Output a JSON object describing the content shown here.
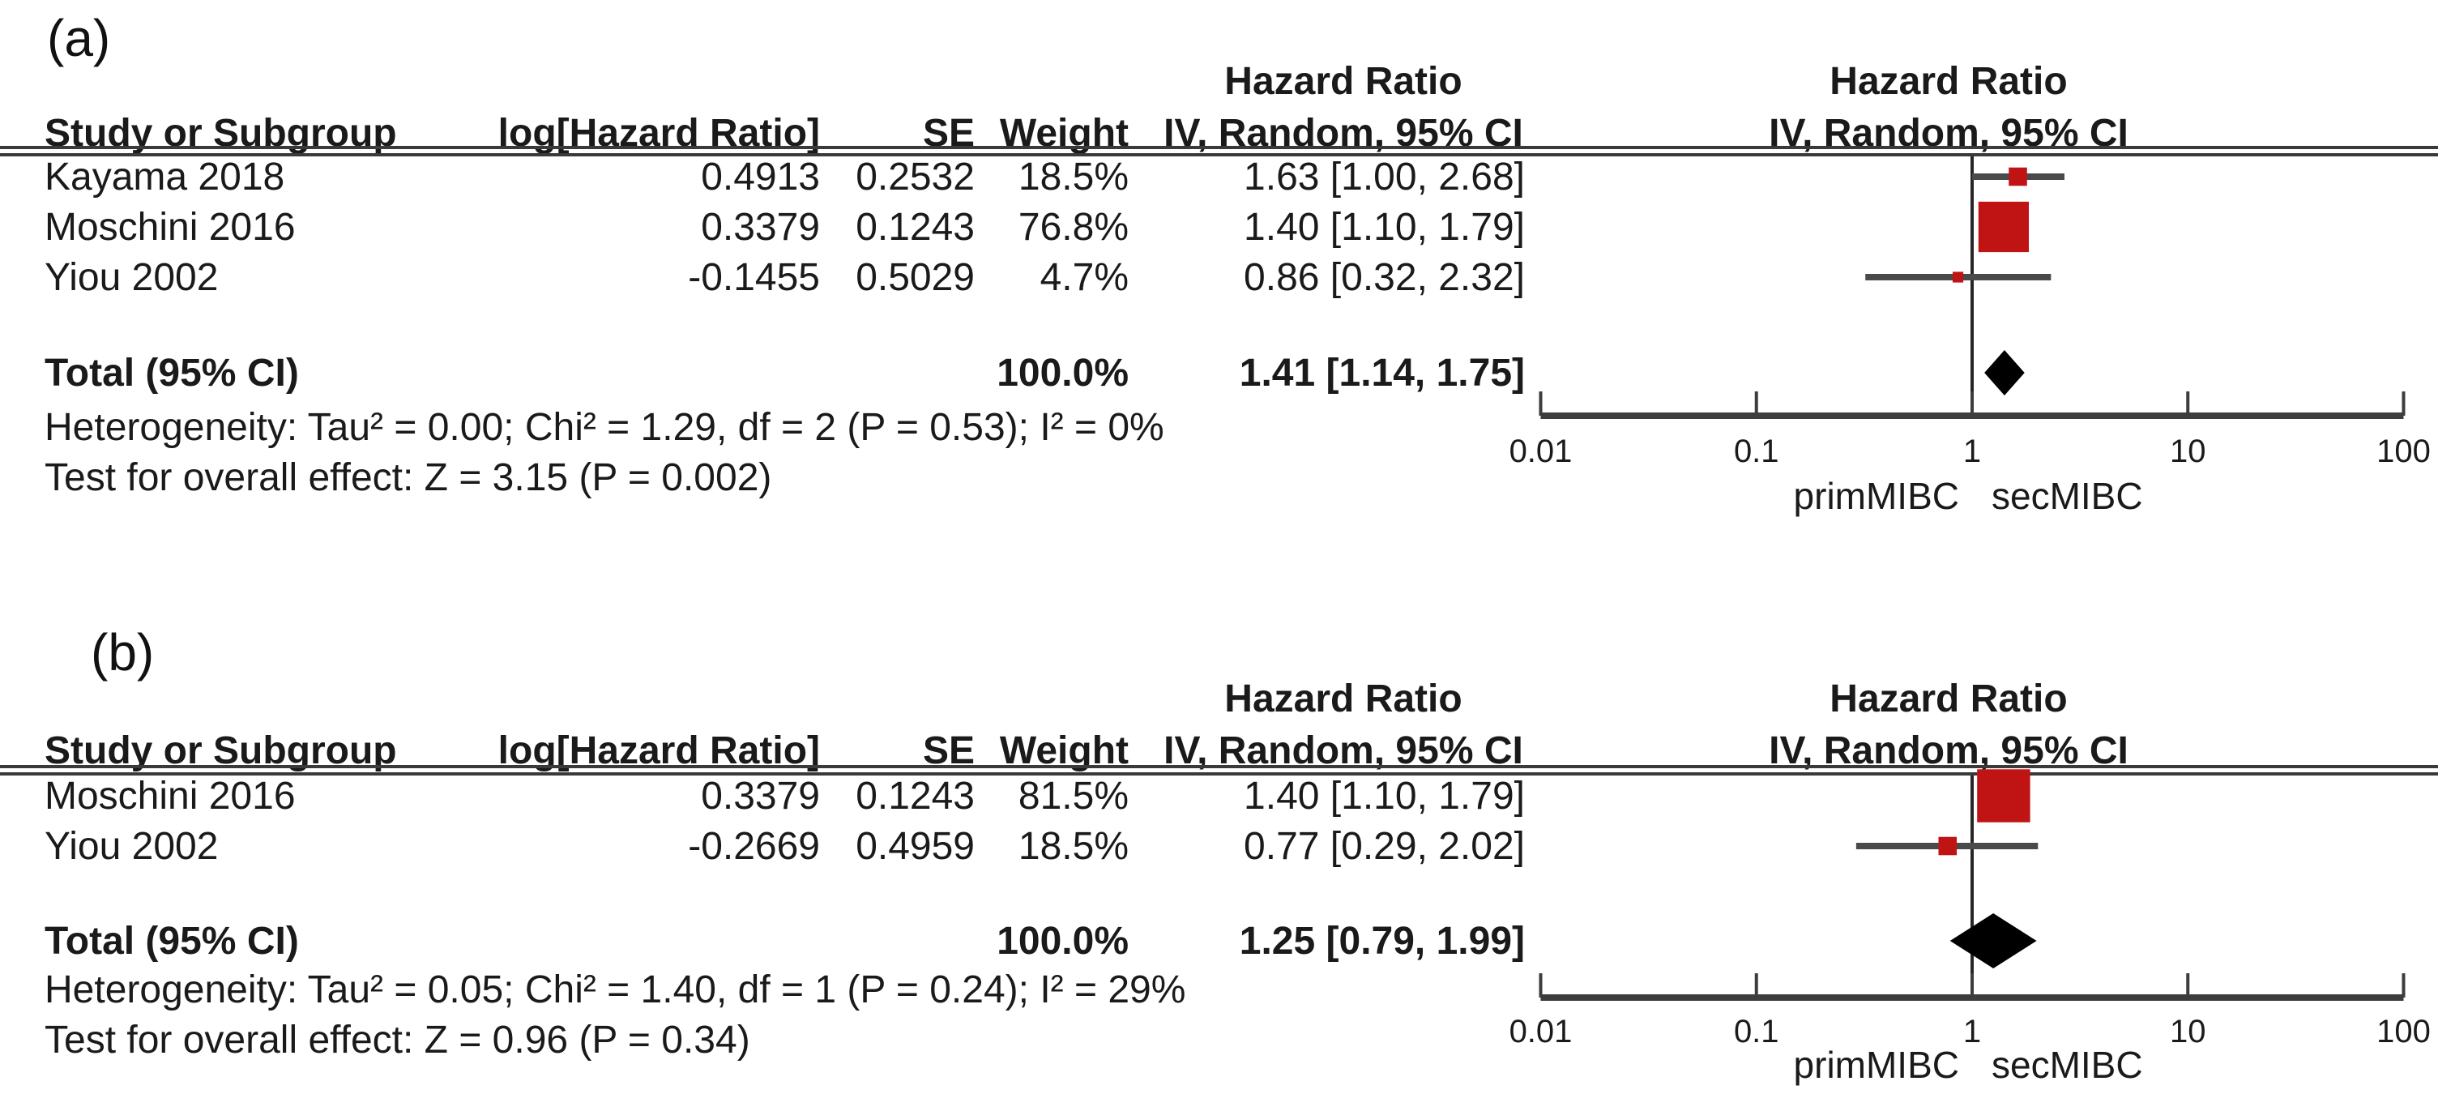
{
  "panels": [
    {
      "label": "(a)",
      "headers": {
        "study": "Study or Subgroup",
        "loghr": "log[Hazard Ratio]",
        "se": "SE",
        "weight": "Weight",
        "ci": "IV, Random, 95% CI",
        "effect_col_title": "Hazard Ratio",
        "plot_title": "Hazard Ratio",
        "plot_subtitle": "IV, Random, 95% CI"
      },
      "rows": [
        {
          "study": "Kayama 2018",
          "loghr": "0.4913",
          "se": "0.2532",
          "weight": "18.5%",
          "ci": "1.63 [1.00, 2.68]"
        },
        {
          "study": "Moschini 2016",
          "loghr": "0.3379",
          "se": "0.1243",
          "weight": "76.8%",
          "ci": "1.40 [1.10, 1.79]"
        },
        {
          "study": "Yiou 2002",
          "loghr": "-0.1455",
          "se": "0.5029",
          "weight": "4.7%",
          "ci": "0.86 [0.32, 2.32]"
        }
      ],
      "total": {
        "label": "Total (95% CI)",
        "weight": "100.0%",
        "ci": "1.41 [1.14, 1.75]"
      },
      "heterogeneity": "Heterogeneity: Tau² = 0.00; Chi² = 1.29, df = 2 (P = 0.53); I² = 0%",
      "overall_effect": "Test for overall effect: Z = 3.15 (P = 0.002)"
    },
    {
      "label": "(b)",
      "headers": {
        "study": "Study or Subgroup",
        "loghr": "log[Hazard Ratio]",
        "se": "SE",
        "weight": "Weight",
        "ci": "IV, Random, 95% CI",
        "effect_col_title": "Hazard Ratio",
        "plot_title": "Hazard Ratio",
        "plot_subtitle": "IV, Random, 95% CI"
      },
      "rows": [
        {
          "study": "Moschini 2016",
          "loghr": "0.3379",
          "se": "0.1243",
          "weight": "81.5%",
          "ci": "1.40 [1.10, 1.79]"
        },
        {
          "study": "Yiou 2002",
          "loghr": "-0.2669",
          "se": "0.4959",
          "weight": "18.5%",
          "ci": "0.77 [0.29, 2.02]"
        }
      ],
      "total": {
        "label": "Total (95% CI)",
        "weight": "100.0%",
        "ci": "1.25 [0.79, 1.99]"
      },
      "heterogeneity": "Heterogeneity: Tau² = 0.05; Chi² = 1.40, df = 1 (P = 0.24); I² = 29%",
      "overall_effect": "Test for overall effect: Z = 0.96 (P = 0.34)"
    }
  ],
  "chart_data": [
    {
      "type": "forest",
      "title": "Hazard Ratio",
      "subtitle": "IV, Random, 95% CI",
      "effect_measure": "Hazard Ratio, IV, Random, 95% CI",
      "x_scale": "log10",
      "xlim": [
        0.01,
        100
      ],
      "x_ticks": [
        0.01,
        0.1,
        1,
        10,
        100
      ],
      "x_tick_labels": [
        "0.01",
        "0.1",
        "1",
        "10",
        "100"
      ],
      "null_value": 1,
      "direction_labels": [
        "primMIBC",
        "secMIBC"
      ],
      "marker_color": "#c01414",
      "diamond_color": "#000000",
      "studies": [
        {
          "name": "Kayama 2018",
          "log_hr": 0.4913,
          "se": 0.2532,
          "weight_pct": 18.5,
          "hr": 1.63,
          "ci_low": 1.0,
          "ci_high": 2.68
        },
        {
          "name": "Moschini 2016",
          "log_hr": 0.3379,
          "se": 0.1243,
          "weight_pct": 76.8,
          "hr": 1.4,
          "ci_low": 1.1,
          "ci_high": 1.79
        },
        {
          "name": "Yiou 2002",
          "log_hr": -0.1455,
          "se": 0.5029,
          "weight_pct": 4.7,
          "hr": 0.86,
          "ci_low": 0.32,
          "ci_high": 2.32
        }
      ],
      "total": {
        "label": "Total (95% CI)",
        "weight_pct": 100.0,
        "hr": 1.41,
        "ci_low": 1.14,
        "ci_high": 1.75
      },
      "heterogeneity": {
        "tau2": 0.0,
        "chi2": 1.29,
        "df": 2,
        "p": 0.53,
        "i2_pct": 0
      },
      "overall_effect": {
        "z": 3.15,
        "p": 0.002
      }
    },
    {
      "type": "forest",
      "title": "Hazard Ratio",
      "subtitle": "IV, Random, 95% CI",
      "effect_measure": "Hazard Ratio, IV, Random, 95% CI",
      "x_scale": "log10",
      "xlim": [
        0.01,
        100
      ],
      "x_ticks": [
        0.01,
        0.1,
        1,
        10,
        100
      ],
      "x_tick_labels": [
        "0.01",
        "0.1",
        "1",
        "10",
        "100"
      ],
      "null_value": 1,
      "direction_labels": [
        "primMIBC",
        "secMIBC"
      ],
      "marker_color": "#c01414",
      "diamond_color": "#000000",
      "studies": [
        {
          "name": "Moschini 2016",
          "log_hr": 0.3379,
          "se": 0.1243,
          "weight_pct": 81.5,
          "hr": 1.4,
          "ci_low": 1.1,
          "ci_high": 1.79
        },
        {
          "name": "Yiou 2002",
          "log_hr": -0.2669,
          "se": 0.4959,
          "weight_pct": 18.5,
          "hr": 0.77,
          "ci_low": 0.29,
          "ci_high": 2.02
        }
      ],
      "total": {
        "label": "Total (95% CI)",
        "weight_pct": 100.0,
        "hr": 1.25,
        "ci_low": 0.79,
        "ci_high": 1.99
      },
      "heterogeneity": {
        "tau2": 0.05,
        "chi2": 1.4,
        "df": 1,
        "p": 0.24,
        "i2_pct": 29
      },
      "overall_effect": {
        "z": 0.96,
        "p": 0.34
      }
    }
  ]
}
